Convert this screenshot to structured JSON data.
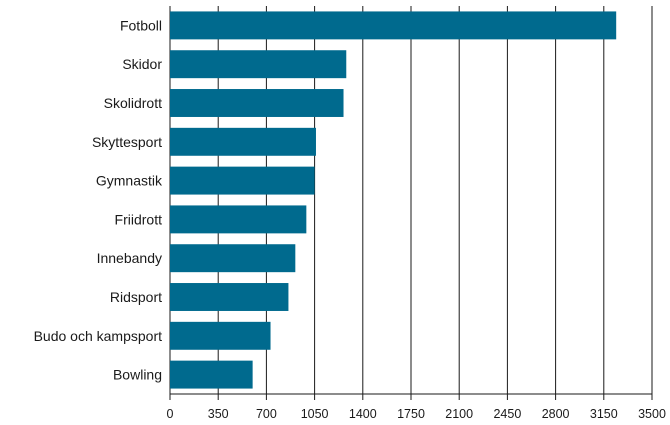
{
  "chart_data": {
    "type": "bar",
    "orientation": "horizontal",
    "title": "",
    "xlabel": "",
    "ylabel": "",
    "categories": [
      "Fotboll",
      "Skidor",
      "Skolidrott",
      "Skyttesport",
      "Gymnastik",
      "Friidrott",
      "Innebandy",
      "Ridsport",
      "Budo och kampsport",
      "Bowling"
    ],
    "values": [
      3240,
      1280,
      1260,
      1060,
      1050,
      990,
      910,
      860,
      730,
      600
    ],
    "xlim": [
      0,
      3500
    ],
    "xticks": [
      "0",
      "350",
      "700",
      "1050",
      "1400",
      "1750",
      "2100",
      "2450",
      "2800",
      "3150",
      "3500"
    ],
    "grid": "vertical",
    "legend": "none",
    "colors": {
      "bar": "#006a8e",
      "grid": "#1a1a1a",
      "text": "#1a1a1a"
    }
  }
}
